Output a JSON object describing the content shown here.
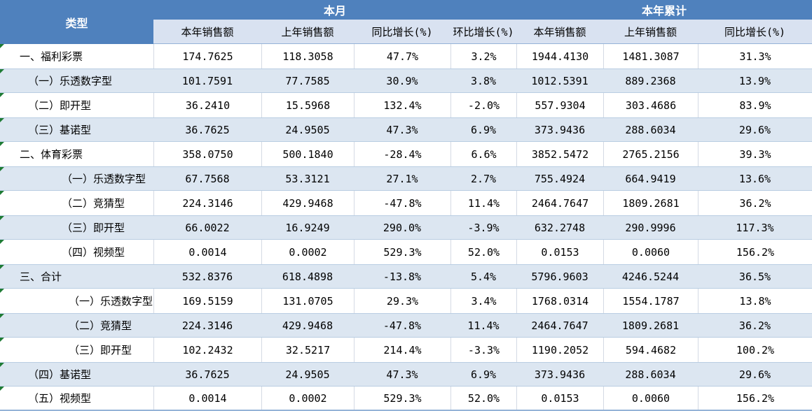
{
  "table": {
    "type_header": "类型",
    "group_headers": [
      {
        "label": "本月"
      },
      {
        "label": "本年累计"
      }
    ],
    "sub_headers": [
      "本年销售额",
      "上年销售额",
      "同比增长(%)",
      "环比增长(%)",
      "本年销售额",
      "上年销售额",
      "同比增长(%)"
    ],
    "rows": [
      {
        "label": "一、福利彩票",
        "indent": 1,
        "values": [
          "174.7625",
          "118.3058",
          "47.7%",
          "3.2%",
          "1944.4130",
          "1481.3087",
          "31.3%"
        ]
      },
      {
        "label": "（一）乐透数字型",
        "indent": 2,
        "values": [
          "101.7591",
          "77.7585",
          "30.9%",
          "3.8%",
          "1012.5391",
          "889.2368",
          "13.9%"
        ]
      },
      {
        "label": "（二）即开型",
        "indent": 2,
        "values": [
          "36.2410",
          "15.5968",
          "132.4%",
          "-2.0%",
          "557.9304",
          "303.4686",
          "83.9%"
        ]
      },
      {
        "label": "（三）基诺型",
        "indent": 2,
        "values": [
          "36.7625",
          "24.9505",
          "47.3%",
          "6.9%",
          "373.9436",
          "288.6034",
          "29.6%"
        ]
      },
      {
        "label": "二、体育彩票",
        "indent": 1,
        "values": [
          "358.0750",
          "500.1840",
          "-28.4%",
          "6.6%",
          "3852.5472",
          "2765.2156",
          "39.3%"
        ]
      },
      {
        "label": "（一）乐透数字型",
        "indent": 3,
        "values": [
          "67.7568",
          "53.3121",
          "27.1%",
          "2.7%",
          "755.4924",
          "664.9419",
          "13.6%"
        ]
      },
      {
        "label": "（二）竞猜型",
        "indent": 3,
        "values": [
          "224.3146",
          "429.9468",
          "-47.8%",
          "11.4%",
          "2464.7647",
          "1809.2681",
          "36.2%"
        ]
      },
      {
        "label": "（三）即开型",
        "indent": 3,
        "values": [
          "66.0022",
          "16.9249",
          "290.0%",
          "-3.9%",
          "632.2748",
          "290.9996",
          "117.3%"
        ]
      },
      {
        "label": "（四）视频型",
        "indent": 3,
        "values": [
          "0.0014",
          "0.0002",
          "529.3%",
          "52.0%",
          "0.0153",
          "0.0060",
          "156.2%"
        ]
      },
      {
        "label": "三、合计",
        "indent": 1,
        "values": [
          "532.8376",
          "618.4898",
          "-13.8%",
          "5.4%",
          "5796.9603",
          "4246.5244",
          "36.5%"
        ]
      },
      {
        "label": "（一）乐透数字型",
        "indent": 4,
        "values": [
          "169.5159",
          "131.0705",
          "29.3%",
          "3.4%",
          "1768.0314",
          "1554.1787",
          "13.8%"
        ]
      },
      {
        "label": "（二）竞猜型",
        "indent": 4,
        "values": [
          "224.3146",
          "429.9468",
          "-47.8%",
          "11.4%",
          "2464.7647",
          "1809.2681",
          "36.2%"
        ]
      },
      {
        "label": "（三）即开型",
        "indent": 4,
        "values": [
          "102.2432",
          "32.5217",
          "214.4%",
          "-3.3%",
          "1190.2052",
          "594.4682",
          "100.2%"
        ]
      },
      {
        "label": "（四）基诺型",
        "indent": 2,
        "values": [
          "36.7625",
          "24.9505",
          "47.3%",
          "6.9%",
          "373.9436",
          "288.6034",
          "29.6%"
        ]
      },
      {
        "label": "（五）视频型",
        "indent": 2,
        "values": [
          "0.0014",
          "0.0002",
          "529.3%",
          "52.0%",
          "0.0153",
          "0.0060",
          "156.2%"
        ]
      }
    ],
    "colors": {
      "header_blue": "#4F81BD",
      "subheader_bg": "#D9E2F1",
      "band_bg": "#DCE6F1",
      "band_border": "#B9CDE2",
      "bottom_border": "#95B3D7",
      "cell_border": "#D4DAE4",
      "indicator_green": "#1E7B34",
      "header_text": "#FFFFFF",
      "body_text": "#000000"
    }
  }
}
